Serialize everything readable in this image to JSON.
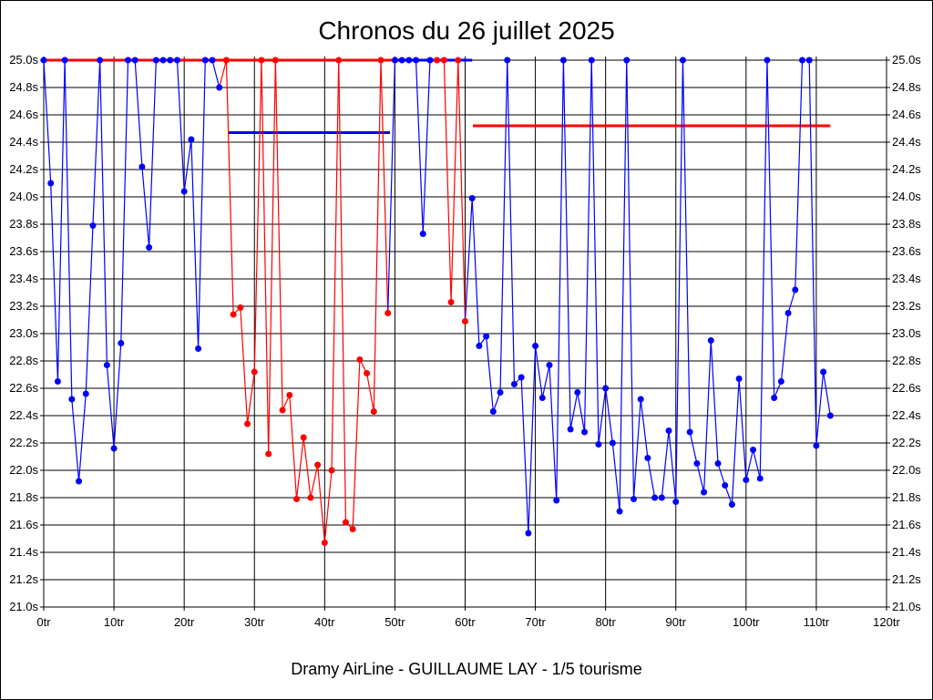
{
  "chart_data": {
    "type": "line",
    "title": "Chronos du 26 juillet 2025",
    "xlabel": "Dramy AirLine - GUILLAUME LAY - 1/5 tourisme",
    "ylabel": "",
    "xlim": [
      0,
      120
    ],
    "ylim": [
      21.0,
      25.0
    ],
    "x_ticks": [
      "0tr",
      "10tr",
      "20tr",
      "30tr",
      "40tr",
      "50tr",
      "60tr",
      "70tr",
      "80tr",
      "90tr",
      "100tr",
      "110tr",
      "120tr"
    ],
    "y_ticks": [
      "21.0s",
      "21.2s",
      "21.4s",
      "21.6s",
      "21.8s",
      "22.0s",
      "22.2s",
      "22.4s",
      "22.6s",
      "22.8s",
      "23.0s",
      "23.2s",
      "23.4s",
      "23.6s",
      "23.8s",
      "24.0s",
      "24.2s",
      "24.4s",
      "24.6s",
      "24.8s",
      "25.0s"
    ],
    "grid": true,
    "colors": {
      "blue": "#0000ff",
      "red": "#ff0000"
    },
    "laps": [
      [
        0,
        25.0,
        "blue"
      ],
      [
        1,
        24.1,
        "blue"
      ],
      [
        2,
        22.65,
        "blue"
      ],
      [
        3,
        25.0,
        "blue"
      ],
      [
        4,
        22.52,
        "blue"
      ],
      [
        5,
        21.92,
        "blue"
      ],
      [
        6,
        22.56,
        "blue"
      ],
      [
        7,
        23.79,
        "blue"
      ],
      [
        8,
        25.0,
        "blue"
      ],
      [
        9,
        22.77,
        "blue"
      ],
      [
        10,
        22.16,
        "blue"
      ],
      [
        11,
        22.93,
        "blue"
      ],
      [
        12,
        25.0,
        "blue"
      ],
      [
        13,
        25.0,
        "blue"
      ],
      [
        14,
        24.22,
        "blue"
      ],
      [
        15,
        23.63,
        "blue"
      ],
      [
        16,
        25.0,
        "blue"
      ],
      [
        17,
        25.0,
        "blue"
      ],
      [
        18,
        25.0,
        "blue"
      ],
      [
        19,
        25.0,
        "blue"
      ],
      [
        20,
        24.04,
        "blue"
      ],
      [
        21,
        24.42,
        "blue"
      ],
      [
        22,
        22.89,
        "blue"
      ],
      [
        23,
        25.0,
        "blue"
      ],
      [
        24,
        25.0,
        "blue"
      ],
      [
        25,
        24.8,
        "blue"
      ],
      [
        26,
        25.0,
        "red"
      ],
      [
        27,
        23.14,
        "red"
      ],
      [
        28,
        23.19,
        "red"
      ],
      [
        29,
        22.34,
        "red"
      ],
      [
        30,
        22.72,
        "red"
      ],
      [
        31,
        25.0,
        "red"
      ],
      [
        32,
        22.12,
        "red"
      ],
      [
        33,
        25.0,
        "red"
      ],
      [
        34,
        22.44,
        "red"
      ],
      [
        35,
        22.55,
        "red"
      ],
      [
        36,
        21.79,
        "red"
      ],
      [
        37,
        22.24,
        "red"
      ],
      [
        38,
        21.8,
        "red"
      ],
      [
        39,
        22.04,
        "red"
      ],
      [
        40,
        21.47,
        "red"
      ],
      [
        41,
        22.0,
        "red"
      ],
      [
        42,
        25.0,
        "red"
      ],
      [
        43,
        21.62,
        "red"
      ],
      [
        44,
        21.57,
        "red"
      ],
      [
        45,
        22.81,
        "red"
      ],
      [
        46,
        22.71,
        "red"
      ],
      [
        47,
        22.43,
        "red"
      ],
      [
        48,
        25.0,
        "red"
      ],
      [
        49,
        23.15,
        "red"
      ],
      [
        50,
        25.0,
        "blue"
      ],
      [
        51,
        25.0,
        "blue"
      ],
      [
        52,
        25.0,
        "blue"
      ],
      [
        53,
        25.0,
        "blue"
      ],
      [
        54,
        23.73,
        "blue"
      ],
      [
        55,
        25.0,
        "blue"
      ],
      [
        56,
        25.0,
        "red"
      ],
      [
        57,
        25.0,
        "red"
      ],
      [
        58,
        23.23,
        "red"
      ],
      [
        59,
        25.0,
        "red"
      ],
      [
        60,
        23.09,
        "red"
      ],
      [
        61,
        23.99,
        "blue"
      ],
      [
        62,
        22.91,
        "blue"
      ],
      [
        63,
        22.98,
        "blue"
      ],
      [
        64,
        22.43,
        "blue"
      ],
      [
        65,
        22.57,
        "blue"
      ],
      [
        66,
        25.0,
        "blue"
      ],
      [
        67,
        22.63,
        "blue"
      ],
      [
        68,
        22.68,
        "blue"
      ],
      [
        69,
        21.54,
        "blue"
      ],
      [
        70,
        22.91,
        "blue"
      ],
      [
        71,
        22.53,
        "blue"
      ],
      [
        72,
        22.77,
        "blue"
      ],
      [
        73,
        21.78,
        "blue"
      ],
      [
        74,
        25.0,
        "blue"
      ],
      [
        75,
        22.3,
        "blue"
      ],
      [
        76,
        22.57,
        "blue"
      ],
      [
        77,
        22.28,
        "blue"
      ],
      [
        78,
        25.0,
        "blue"
      ],
      [
        79,
        22.19,
        "blue"
      ],
      [
        80,
        22.6,
        "blue"
      ],
      [
        81,
        22.2,
        "blue"
      ],
      [
        82,
        21.7,
        "blue"
      ],
      [
        83,
        25.0,
        "blue"
      ],
      [
        84,
        21.79,
        "blue"
      ],
      [
        85,
        22.52,
        "blue"
      ],
      [
        86,
        22.09,
        "blue"
      ],
      [
        87,
        21.8,
        "blue"
      ],
      [
        88,
        21.8,
        "blue"
      ],
      [
        89,
        22.29,
        "blue"
      ],
      [
        90,
        21.77,
        "blue"
      ],
      [
        91,
        25.0,
        "blue"
      ],
      [
        92,
        22.28,
        "blue"
      ],
      [
        93,
        22.05,
        "blue"
      ],
      [
        94,
        21.84,
        "blue"
      ],
      [
        95,
        22.95,
        "blue"
      ],
      [
        96,
        22.05,
        "blue"
      ],
      [
        97,
        21.89,
        "blue"
      ],
      [
        98,
        21.75,
        "blue"
      ],
      [
        99,
        22.67,
        "blue"
      ],
      [
        100,
        21.93,
        "blue"
      ],
      [
        101,
        22.15,
        "blue"
      ],
      [
        102,
        21.94,
        "blue"
      ],
      [
        103,
        25.0,
        "blue"
      ],
      [
        104,
        22.53,
        "blue"
      ],
      [
        105,
        22.65,
        "blue"
      ],
      [
        106,
        23.15,
        "blue"
      ],
      [
        107,
        23.32,
        "blue"
      ],
      [
        108,
        25.0,
        "blue"
      ],
      [
        109,
        25.0,
        "blue"
      ],
      [
        110,
        22.18,
        "blue"
      ],
      [
        111,
        22.72,
        "blue"
      ],
      [
        112,
        22.4,
        "blue"
      ]
    ],
    "reference_lines": [
      {
        "from": 0,
        "to": 60,
        "y": 25.0,
        "color": "red"
      },
      {
        "from": 50,
        "to": 61,
        "y": 25.0,
        "color": "blue"
      },
      {
        "from": 26.2,
        "to": 49.3,
        "y": 24.47,
        "color": "blue"
      },
      {
        "from": 61.1,
        "to": 112,
        "y": 24.52,
        "color": "red"
      }
    ]
  }
}
